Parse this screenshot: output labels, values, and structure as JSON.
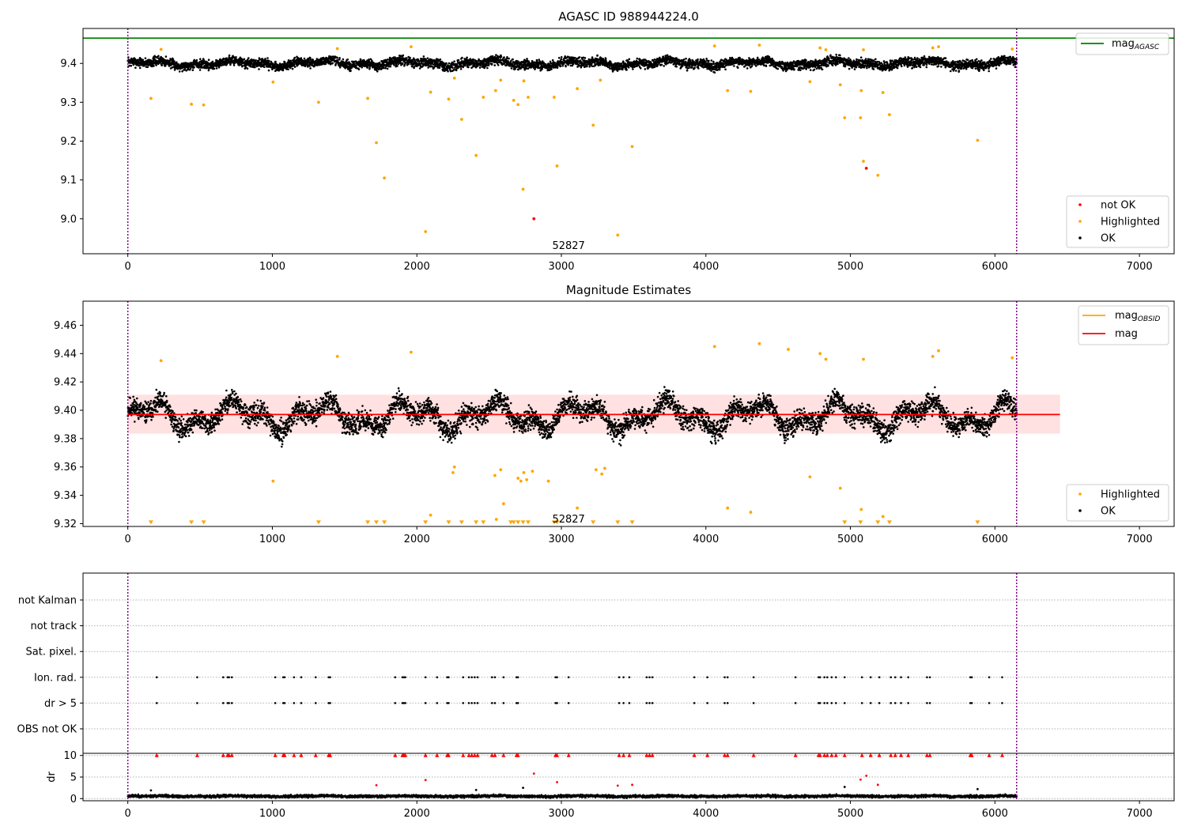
{
  "colors": {
    "ok": "#000000",
    "highlighted": "#ffa500",
    "not_ok": "#ff0000",
    "mag_agasc_line": "#008000",
    "mag_obsid_line": "#ffa500",
    "mag_line": "#ff0000",
    "band_fill": "#ffaaaa",
    "vline": "#800080",
    "grid": "#b0b0b0"
  },
  "chart_data": [
    {
      "type": "scatter",
      "title": "AGASC ID 988944224.0",
      "xlim": [
        -310,
        7240
      ],
      "ylim": [
        8.91,
        9.49
      ],
      "xticks": [
        0,
        1000,
        2000,
        3000,
        4000,
        5000,
        6000,
        7000
      ],
      "xtick_labels": [
        "0",
        "1000",
        "2000",
        "3000",
        "4000",
        "5000",
        "6000",
        "7000"
      ],
      "yticks": [
        9.0,
        9.1,
        9.2,
        9.3,
        9.4
      ],
      "ytick_labels": [
        "9.0",
        "9.1",
        "9.2",
        "9.3",
        "9.4"
      ],
      "vlines": [
        0,
        6150
      ],
      "hline": {
        "name": "mag_AGASC",
        "y": 9.465,
        "x_end": 7240
      },
      "annotation": {
        "text": "52827",
        "x": 3050,
        "y": 8.93
      },
      "legend_top": {
        "position": "top-right",
        "entries": [
          {
            "label_main": "mag",
            "label_sub": "AGASC",
            "kind": "line",
            "color_key": "mag_agasc_line"
          }
        ]
      },
      "legend_bottom": {
        "position": "bottom-right",
        "entries": [
          {
            "label": "not OK",
            "color_key": "not_ok"
          },
          {
            "label": "Highlighted",
            "color_key": "highlighted"
          },
          {
            "label": "OK",
            "color_key": "ok"
          }
        ]
      },
      "ok_band": {
        "x_start": 0,
        "x_end": 6150,
        "center": 9.4,
        "halfwidth": 0.018,
        "wave_amplitude": 0.009
      },
      "series": [
        {
          "name": "Highlighted",
          "color_key": "highlighted",
          "points": [
            [
              160,
              9.31
            ],
            [
              440,
              9.295
            ],
            [
              525,
              9.293
            ],
            [
              1320,
              9.3
            ],
            [
              1660,
              9.31
            ],
            [
              1720,
              9.196
            ],
            [
              1775,
              9.105
            ],
            [
              2060,
              8.967
            ],
            [
              2095,
              9.326
            ],
            [
              2220,
              9.308
            ],
            [
              2310,
              9.256
            ],
            [
              2410,
              9.163
            ],
            [
              2460,
              9.313
            ],
            [
              2545,
              9.33
            ],
            [
              2670,
              9.305
            ],
            [
              2700,
              9.294
            ],
            [
              2735,
              9.076
            ],
            [
              2770,
              9.313
            ],
            [
              2950,
              9.313
            ],
            [
              2970,
              9.136
            ],
            [
              3110,
              9.335
            ],
            [
              3220,
              9.241
            ],
            [
              3390,
              8.958
            ],
            [
              3490,
              9.186
            ],
            [
              4150,
              9.33
            ],
            [
              4310,
              9.328
            ],
            [
              4720,
              9.353
            ],
            [
              4930,
              9.345
            ],
            [
              4960,
              9.26
            ],
            [
              5070,
              9.26
            ],
            [
              5075,
              9.33
            ],
            [
              5090,
              9.148
            ],
            [
              5190,
              9.112
            ],
            [
              5225,
              9.325
            ],
            [
              5270,
              9.268
            ],
            [
              5880,
              9.202
            ],
            [
              1005,
              9.352
            ],
            [
              1960,
              9.443
            ],
            [
              1450,
              9.438
            ],
            [
              4060,
              9.445
            ],
            [
              4370,
              9.447
            ],
            [
              4790,
              9.44
            ],
            [
              4830,
              9.435
            ],
            [
              5090,
              9.435
            ],
            [
              5570,
              9.44
            ],
            [
              5610,
              9.443
            ],
            [
              6120,
              9.437
            ],
            [
              230,
              9.436
            ],
            [
              2260,
              9.362
            ],
            [
              2580,
              9.357
            ],
            [
              2740,
              9.355
            ],
            [
              3270,
              9.357
            ]
          ]
        },
        {
          "name": "not OK",
          "color_key": "not_ok",
          "points": [
            [
              2810,
              9.0
            ],
            [
              5110,
              9.13
            ]
          ]
        }
      ]
    },
    {
      "type": "scatter",
      "title": "Magnitude Estimates",
      "xlim": [
        -310,
        7240
      ],
      "ylim": [
        9.318,
        9.477
      ],
      "xticks": [
        0,
        1000,
        2000,
        3000,
        4000,
        5000,
        6000,
        7000
      ],
      "xtick_labels": [
        "0",
        "1000",
        "2000",
        "3000",
        "4000",
        "5000",
        "6000",
        "7000"
      ],
      "yticks": [
        9.32,
        9.34,
        9.36,
        9.38,
        9.4,
        9.42,
        9.44,
        9.46
      ],
      "ytick_labels": [
        "9.32",
        "9.34",
        "9.36",
        "9.38",
        "9.40",
        "9.42",
        "9.44",
        "9.46"
      ],
      "vlines": [
        0,
        6150
      ],
      "band": {
        "x_start": 0,
        "x_end": 6450,
        "y_low": 9.3835,
        "y_high": 9.411
      },
      "hlines": [
        {
          "name": "mag",
          "y": 9.397,
          "x_start": 0,
          "x_end": 6450
        }
      ],
      "annotation": {
        "text": "52827",
        "x": 3050,
        "y": 9.323
      },
      "legend_top": {
        "position": "top-right",
        "entries": [
          {
            "label_main": "mag",
            "label_sub": "OBSID",
            "kind": "line",
            "color_key": "mag_obsid_line"
          },
          {
            "label_main": "mag",
            "label_sub": "",
            "kind": "line",
            "color_key": "mag_line"
          }
        ]
      },
      "legend_bottom": {
        "position": "bottom-right",
        "entries": [
          {
            "label": "Highlighted",
            "color_key": "highlighted"
          },
          {
            "label": "OK",
            "color_key": "ok"
          }
        ]
      },
      "ok_band": {
        "x_start": 0,
        "x_end": 6150,
        "center": 9.396,
        "halfwidth": 0.011,
        "wave_amplitude": 0.012
      },
      "series": [
        {
          "name": "Highlighted",
          "color_key": "highlighted",
          "points": [
            [
              1005,
              9.35
            ],
            [
              2095,
              9.326
            ],
            [
              2250,
              9.356
            ],
            [
              2260,
              9.36
            ],
            [
              2540,
              9.354
            ],
            [
              2550,
              9.323
            ],
            [
              2580,
              9.358
            ],
            [
              2600,
              9.334
            ],
            [
              2700,
              9.352
            ],
            [
              2720,
              9.35
            ],
            [
              2740,
              9.356
            ],
            [
              2760,
              9.351
            ],
            [
              2800,
              9.357
            ],
            [
              3110,
              9.331
            ],
            [
              3240,
              9.358
            ],
            [
              3280,
              9.355
            ],
            [
              3300,
              9.359
            ],
            [
              4150,
              9.331
            ],
            [
              4310,
              9.328
            ],
            [
              4720,
              9.353
            ],
            [
              4930,
              9.345
            ],
            [
              5075,
              9.33
            ],
            [
              5225,
              9.325
            ],
            [
              1450,
              9.438
            ],
            [
              1960,
              9.441
            ],
            [
              4060,
              9.445
            ],
            [
              4370,
              9.447
            ],
            [
              4570,
              9.443
            ],
            [
              4790,
              9.44
            ],
            [
              4830,
              9.436
            ],
            [
              5090,
              9.436
            ],
            [
              5570,
              9.438
            ],
            [
              5610,
              9.442
            ],
            [
              6120,
              9.437
            ],
            [
              230,
              9.435
            ],
            [
              2910,
              9.35
            ]
          ]
        },
        {
          "name": "Highlighted (below axis)",
          "color_key": "highlighted",
          "markers": "triangle-down",
          "y": 9.32,
          "x": [
            160,
            440,
            525,
            1320,
            1660,
            1720,
            1775,
            2060,
            2220,
            2310,
            2410,
            2460,
            2650,
            2670,
            2700,
            2735,
            2770,
            2950,
            2970,
            3220,
            3390,
            3490,
            4960,
            5070,
            5190,
            5270,
            5880
          ]
        }
      ]
    },
    {
      "type": "scatter",
      "title": "",
      "xlim": [
        -310,
        7240
      ],
      "categories": [
        "not Kalman",
        "not track",
        "Sat. pixel.",
        "Ion. rad.",
        "dr > 5",
        "OBS not OK"
      ],
      "category_event_x": [
        200,
        480,
        660,
        690,
        700,
        720,
        1020,
        1075,
        1085,
        1150,
        1200,
        1300,
        1390,
        1400,
        1850,
        1900,
        1910,
        1920,
        2060,
        2140,
        2210,
        2220,
        2320,
        2360,
        2380,
        2400,
        2420,
        2520,
        2540,
        2600,
        2690,
        2700,
        2960,
        2970,
        3050,
        3400,
        3430,
        3470,
        3590,
        3610,
        3630,
        3920,
        4010,
        4130,
        4150,
        4330,
        4620,
        4780,
        4790,
        4820,
        4840,
        4870,
        4900,
        4960,
        5080,
        5140,
        5200,
        5280,
        5310,
        5350,
        5400,
        5530,
        5550,
        5830,
        5840,
        5960,
        6050
      ],
      "events": [
        {
          "category": "Ion. rad."
        },
        {
          "category": "dr > 5"
        }
      ]
    },
    {
      "type": "scatter",
      "title": "",
      "ylabel": "dr",
      "xlim": [
        -310,
        7240
      ],
      "ylim": [
        -0.5,
        10.5
      ],
      "xticks": [
        0,
        1000,
        2000,
        3000,
        4000,
        5000,
        6000,
        7000
      ],
      "xtick_labels": [
        "0",
        "1000",
        "2000",
        "3000",
        "4000",
        "5000",
        "6000",
        "7000"
      ],
      "yticks": [
        0,
        5,
        10
      ],
      "ytick_labels": [
        "0",
        "5",
        "10"
      ],
      "vlines": [
        0,
        6150
      ],
      "clipped_marker_y": 10,
      "ok_band": {
        "x_start": 0,
        "x_end": 6150,
        "center": 0.55,
        "halfwidth": 0.45,
        "wave_amplitude": 0.1
      },
      "series": [
        {
          "name": "not OK",
          "color_key": "not_ok",
          "points": [
            [
              1720,
              3.1
            ],
            [
              2060,
              4.3
            ],
            [
              2810,
              5.8
            ],
            [
              2970,
              3.8
            ],
            [
              3390,
              3.0
            ],
            [
              3490,
              3.2
            ],
            [
              5070,
              4.4
            ],
            [
              5110,
              5.3
            ],
            [
              5190,
              3.2
            ]
          ]
        },
        {
          "name": "OK (outliers)",
          "color_key": "ok",
          "points": [
            [
              160,
              1.9
            ],
            [
              2410,
              2.0
            ],
            [
              2735,
              2.5
            ],
            [
              4960,
              2.7
            ],
            [
              5880,
              2.2
            ]
          ]
        }
      ]
    }
  ]
}
